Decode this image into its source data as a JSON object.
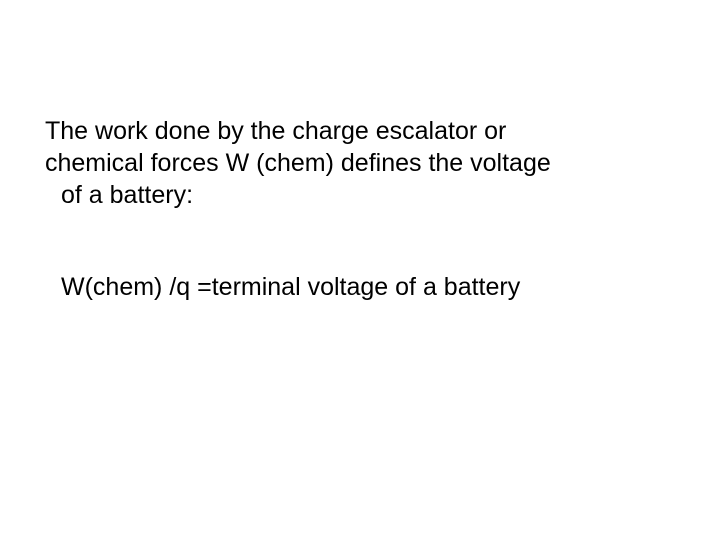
{
  "slide": {
    "background_color": "#ffffff",
    "text_color": "#000000",
    "font_family": "Arial",
    "font_size_pt": 25,
    "paragraph": {
      "line1": "The work done by the charge escalator or",
      "line2": "chemical forces W (chem) defines the voltage",
      "line3": "of a battery:"
    },
    "equation": "W(chem) /q =terminal voltage of a battery"
  }
}
